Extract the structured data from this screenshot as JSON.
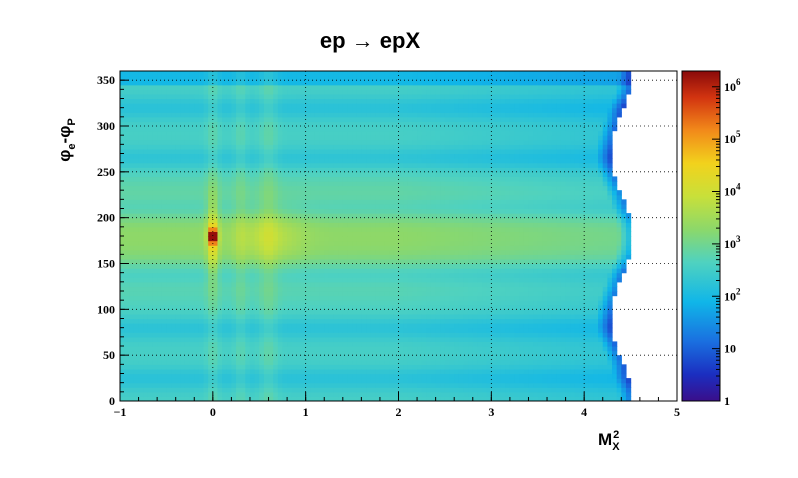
{
  "chart_data": {
    "type": "heatmap",
    "title": "ep → epX",
    "xlabel": {
      "base": "M",
      "sup": "2",
      "sub": "X"
    },
    "ylabel": {
      "phi1": "φ",
      "sub1": "e",
      "dash": "-",
      "phi2": "φ",
      "sub2": "P"
    },
    "xlim": [
      -1,
      5
    ],
    "ylim": [
      0,
      360
    ],
    "x_ticks": [
      "−1",
      "0",
      "1",
      "2",
      "3",
      "4",
      "5"
    ],
    "y_ticks": [
      "0",
      "50",
      "100",
      "150",
      "200",
      "250",
      "300",
      "350"
    ],
    "grid": true,
    "log_z": true,
    "zlim": [
      1,
      2000000
    ],
    "colorbar_ticks": [
      {
        "base": "1",
        "exp": ""
      },
      {
        "base": "10",
        "exp": ""
      },
      {
        "base": "10",
        "exp": "2"
      },
      {
        "base": "10",
        "exp": "3"
      },
      {
        "base": "10",
        "exp": "4"
      },
      {
        "base": "10",
        "exp": "5"
      },
      {
        "base": "10",
        "exp": "6"
      }
    ],
    "features": {
      "peak": {
        "x": 0.0,
        "y": 180,
        "counts": 1000000
      },
      "vertical_bands_x": [
        0.0,
        0.3,
        0.6
      ],
      "horizontal_band_y": 180,
      "phi_modulation_dips_y": [
        25,
        80,
        140,
        210,
        265,
        320
      ],
      "kinematic_edge_x": 4.4
    }
  }
}
